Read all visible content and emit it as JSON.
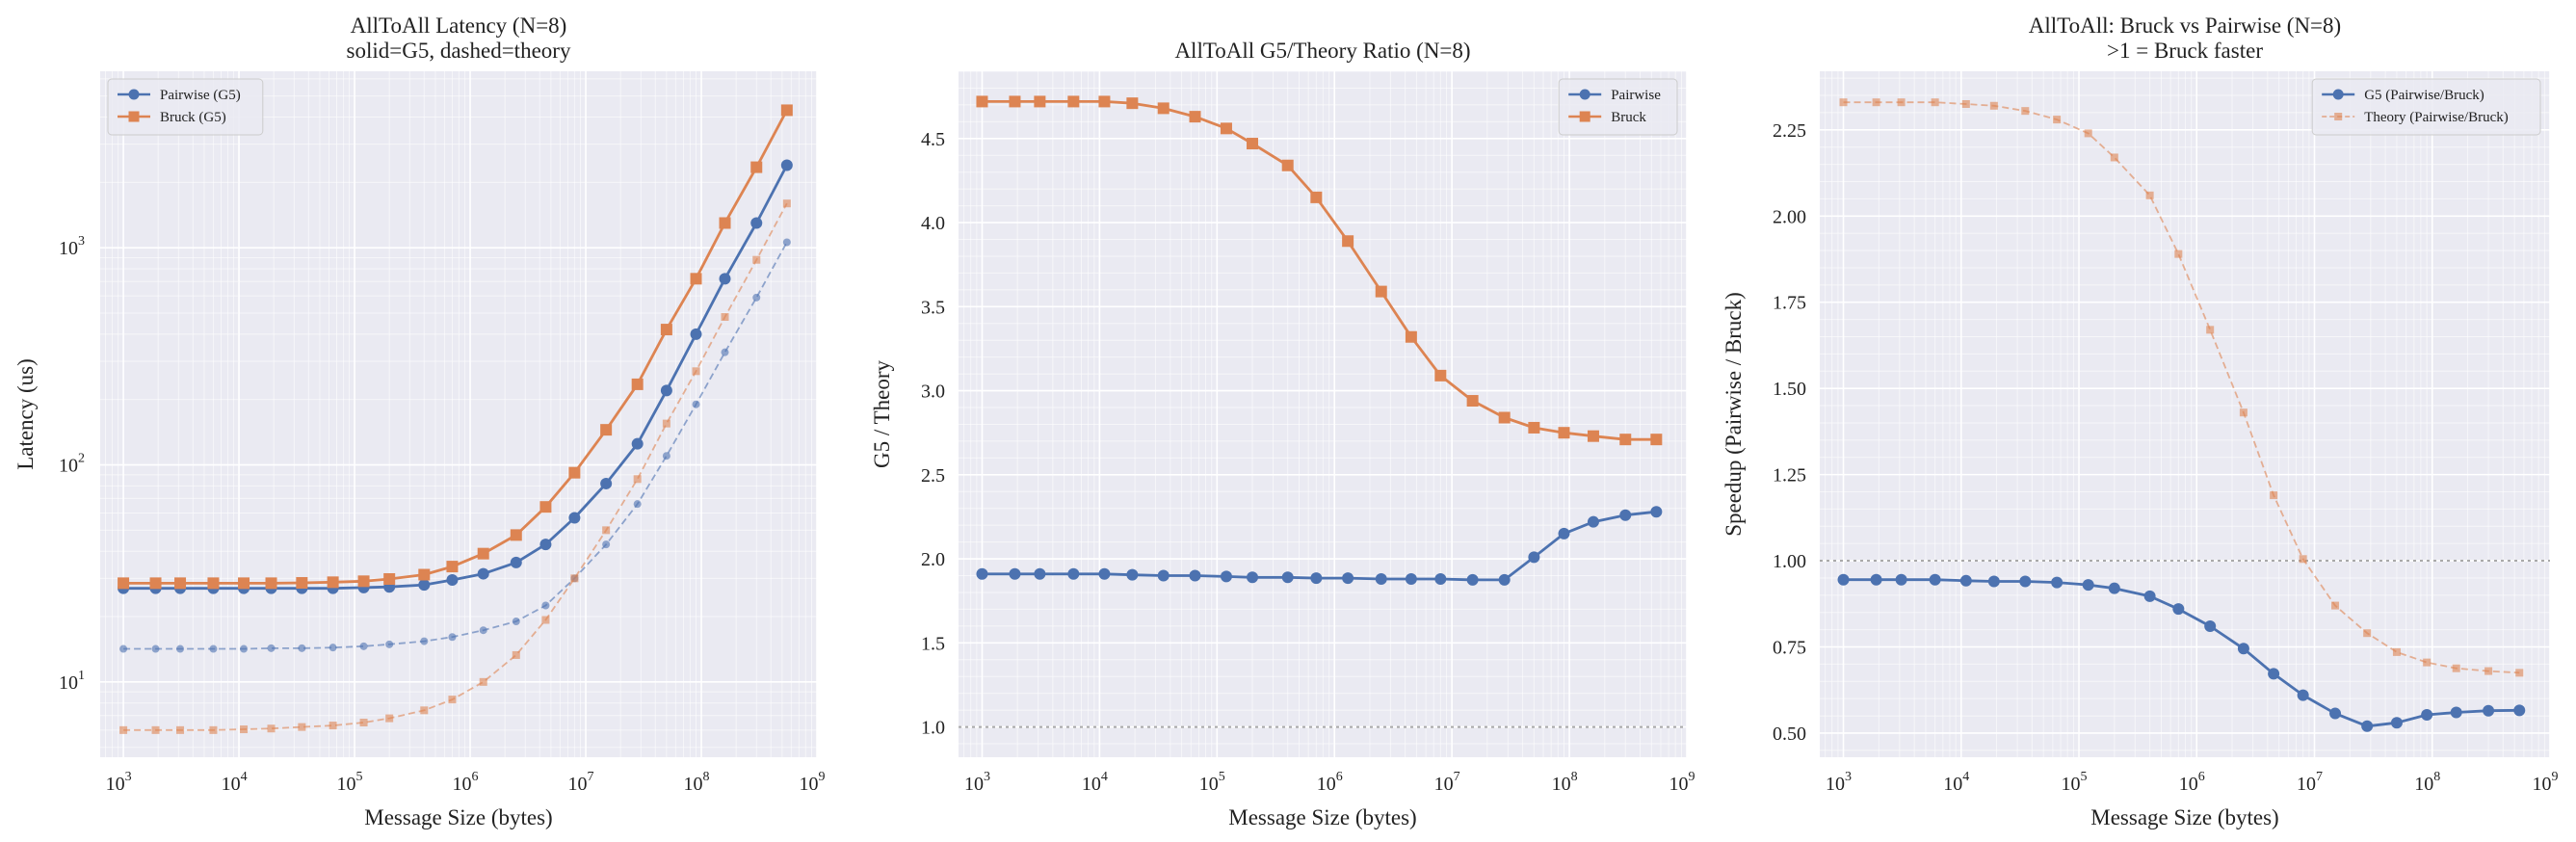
{
  "colors": {
    "background": "#ffffff",
    "axes_face": "#eaeaf2",
    "grid_major": "#ffffff",
    "pairwise": "#4c72b0",
    "bruck": "#dd8452",
    "reference_line": "#a9a9a9"
  },
  "chart_data": [
    {
      "type": "line",
      "title_lines": [
        "AllToAll Latency (N=8)",
        "solid=G5, dashed=theory"
      ],
      "xlabel": "Message Size (bytes)",
      "ylabel": "Latency (us)",
      "xscale": "log",
      "yscale": "log",
      "xlim": [
        630,
        1000000000
      ],
      "ylim": [
        4.5,
        6500
      ],
      "x_ticks": [
        {
          "value": 1000,
          "base": "10",
          "exp": "3"
        },
        {
          "value": 10000,
          "base": "10",
          "exp": "4"
        },
        {
          "value": 100000,
          "base": "10",
          "exp": "5"
        },
        {
          "value": 1000000,
          "base": "10",
          "exp": "6"
        },
        {
          "value": 10000000,
          "base": "10",
          "exp": "7"
        },
        {
          "value": 100000000,
          "base": "10",
          "exp": "8"
        },
        {
          "value": 1000000000,
          "base": "10",
          "exp": "9"
        }
      ],
      "y_ticks": [
        {
          "value": 10,
          "base": "10",
          "exp": "1"
        },
        {
          "value": 100,
          "base": "10",
          "exp": "2"
        },
        {
          "value": 1000,
          "base": "10",
          "exp": "3"
        }
      ],
      "grid": true,
      "legend": {
        "placement": "top-left",
        "entries": [
          {
            "label": "Pairwise (G5)",
            "color": "#4c72b0",
            "marker": "circle",
            "dashed": false
          },
          {
            "label": "Bruck (G5)",
            "color": "#dd8452",
            "marker": "square",
            "dashed": false
          }
        ]
      },
      "x": [
        1000,
        1900,
        3100,
        6000,
        11000,
        19000,
        35000,
        65000,
        120000,
        200000,
        400000,
        700000,
        1300000,
        2500000,
        4500000,
        8000000,
        15000000,
        28000000,
        50000000,
        90000000,
        160000000,
        300000000,
        550000000
      ],
      "series": [
        {
          "key": "pairwise_g5",
          "color": "#4c72b0",
          "marker": "circle",
          "dashed": false,
          "values": [
            27,
            27,
            27,
            27,
            27,
            27,
            27,
            27,
            27.2,
            27.4,
            28,
            29.5,
            31.5,
            35.5,
            43,
            57,
            82,
            125,
            220,
            400,
            720,
            1300,
            2400
          ]
        },
        {
          "key": "bruck_g5",
          "color": "#dd8452",
          "marker": "square",
          "dashed": false,
          "values": [
            28.5,
            28.5,
            28.5,
            28.5,
            28.5,
            28.5,
            28.6,
            28.8,
            29.1,
            29.8,
            31.2,
            34,
            39,
            47.5,
            64,
            92,
            145,
            235,
            420,
            720,
            1300,
            2350,
            4300
          ]
        },
        {
          "key": "pairwise_theory",
          "color": "#4c72b0",
          "marker": "circle",
          "dashed": true,
          "values": [
            14.2,
            14.2,
            14.2,
            14.2,
            14.2,
            14.3,
            14.3,
            14.4,
            14.6,
            14.9,
            15.4,
            16.1,
            17.3,
            19,
            22.5,
            30,
            43,
            66,
            110,
            190,
            330,
            590,
            1060
          ]
        },
        {
          "key": "bruck_theory",
          "color": "#dd8452",
          "marker": "square",
          "dashed": true,
          "values": [
            6,
            6,
            6,
            6,
            6.05,
            6.1,
            6.2,
            6.3,
            6.5,
            6.8,
            7.4,
            8.3,
            10,
            13.3,
            19.3,
            30,
            50,
            86,
            155,
            270,
            480,
            880,
            1600
          ]
        }
      ]
    },
    {
      "type": "line",
      "title_lines": [
        "AllToAll G5/Theory Ratio (N=8)"
      ],
      "xlabel": "Message Size (bytes)",
      "ylabel": "G5 / Theory",
      "xscale": "log",
      "yscale": "linear",
      "xlim": [
        630,
        1000000000
      ],
      "ylim": [
        0.82,
        4.9
      ],
      "x_ticks": [
        {
          "value": 1000,
          "base": "10",
          "exp": "3"
        },
        {
          "value": 10000,
          "base": "10",
          "exp": "4"
        },
        {
          "value": 100000,
          "base": "10",
          "exp": "5"
        },
        {
          "value": 1000000,
          "base": "10",
          "exp": "6"
        },
        {
          "value": 10000000,
          "base": "10",
          "exp": "7"
        },
        {
          "value": 100000000,
          "base": "10",
          "exp": "8"
        },
        {
          "value": 1000000000,
          "base": "10",
          "exp": "9"
        }
      ],
      "y_ticks": [
        {
          "value": 1.0,
          "label": "1.0"
        },
        {
          "value": 1.5,
          "label": "1.5"
        },
        {
          "value": 2.0,
          "label": "2.0"
        },
        {
          "value": 2.5,
          "label": "2.5"
        },
        {
          "value": 3.0,
          "label": "3.0"
        },
        {
          "value": 3.5,
          "label": "3.5"
        },
        {
          "value": 4.0,
          "label": "4.0"
        },
        {
          "value": 4.5,
          "label": "4.5"
        }
      ],
      "grid": true,
      "reference_line": 1.0,
      "legend": {
        "placement": "top-right",
        "entries": [
          {
            "label": "Pairwise",
            "color": "#4c72b0",
            "marker": "circle",
            "dashed": false
          },
          {
            "label": "Bruck",
            "color": "#dd8452",
            "marker": "square",
            "dashed": false
          }
        ]
      },
      "x": [
        1000,
        1900,
        3100,
        6000,
        11000,
        19000,
        35000,
        65000,
        120000,
        200000,
        400000,
        700000,
        1300000,
        2500000,
        4500000,
        8000000,
        15000000,
        28000000,
        50000000,
        90000000,
        160000000,
        300000000,
        550000000
      ],
      "series": [
        {
          "key": "pairwise",
          "color": "#4c72b0",
          "marker": "circle",
          "dashed": false,
          "values": [
            1.91,
            1.91,
            1.91,
            1.91,
            1.91,
            1.905,
            1.9,
            1.9,
            1.895,
            1.89,
            1.89,
            1.885,
            1.885,
            1.88,
            1.88,
            1.88,
            1.875,
            1.875,
            2.01,
            2.15,
            2.22,
            2.26,
            2.28
          ]
        },
        {
          "key": "bruck",
          "color": "#dd8452",
          "marker": "square",
          "dashed": false,
          "values": [
            4.72,
            4.72,
            4.72,
            4.72,
            4.72,
            4.71,
            4.68,
            4.63,
            4.56,
            4.47,
            4.34,
            4.15,
            3.89,
            3.59,
            3.32,
            3.09,
            2.94,
            2.84,
            2.78,
            2.75,
            2.73,
            2.71,
            2.71
          ]
        }
      ]
    },
    {
      "type": "line",
      "title_lines": [
        "AllToAll: Bruck vs Pairwise (N=8)",
        ">1 = Bruck faster"
      ],
      "xlabel": "Message Size (bytes)",
      "ylabel": "Speedup (Pairwise / Bruck)",
      "xscale": "log",
      "yscale": "linear",
      "xlim": [
        630,
        1000000000
      ],
      "ylim": [
        0.43,
        2.42
      ],
      "x_ticks": [
        {
          "value": 1000,
          "base": "10",
          "exp": "3"
        },
        {
          "value": 10000,
          "base": "10",
          "exp": "4"
        },
        {
          "value": 100000,
          "base": "10",
          "exp": "5"
        },
        {
          "value": 1000000,
          "base": "10",
          "exp": "6"
        },
        {
          "value": 10000000,
          "base": "10",
          "exp": "7"
        },
        {
          "value": 100000000,
          "base": "10",
          "exp": "8"
        },
        {
          "value": 1000000000,
          "base": "10",
          "exp": "9"
        }
      ],
      "y_ticks": [
        {
          "value": 0.5,
          "label": "0.50"
        },
        {
          "value": 0.75,
          "label": "0.75"
        },
        {
          "value": 1.0,
          "label": "1.00"
        },
        {
          "value": 1.25,
          "label": "1.25"
        },
        {
          "value": 1.5,
          "label": "1.50"
        },
        {
          "value": 1.75,
          "label": "1.75"
        },
        {
          "value": 2.0,
          "label": "2.00"
        },
        {
          "value": 2.25,
          "label": "2.25"
        }
      ],
      "grid": true,
      "reference_line": 1.0,
      "legend": {
        "placement": "top-right",
        "entries": [
          {
            "label": "G5 (Pairwise/Bruck)",
            "color": "#4c72b0",
            "marker": "circle",
            "dashed": false
          },
          {
            "label": "Theory (Pairwise/Bruck)",
            "color": "#dd8452",
            "marker": "square",
            "dashed": true
          }
        ]
      },
      "x": [
        1000,
        1900,
        3100,
        6000,
        11000,
        19000,
        35000,
        65000,
        120000,
        200000,
        400000,
        700000,
        1300000,
        2500000,
        4500000,
        8000000,
        15000000,
        28000000,
        50000000,
        90000000,
        160000000,
        300000000,
        550000000
      ],
      "series": [
        {
          "key": "g5",
          "color": "#4c72b0",
          "marker": "circle",
          "dashed": false,
          "values": [
            0.945,
            0.945,
            0.945,
            0.945,
            0.942,
            0.94,
            0.94,
            0.937,
            0.93,
            0.92,
            0.897,
            0.86,
            0.81,
            0.745,
            0.672,
            0.61,
            0.557,
            0.52,
            0.53,
            0.553,
            0.56,
            0.565,
            0.566
          ]
        },
        {
          "key": "theory",
          "color": "#dd8452",
          "marker": "square",
          "dashed": true,
          "values": [
            2.33,
            2.33,
            2.33,
            2.33,
            2.325,
            2.32,
            2.305,
            2.28,
            2.24,
            2.17,
            2.06,
            1.89,
            1.67,
            1.43,
            1.19,
            1.005,
            0.87,
            0.79,
            0.735,
            0.705,
            0.688,
            0.68,
            0.675
          ]
        }
      ]
    }
  ]
}
